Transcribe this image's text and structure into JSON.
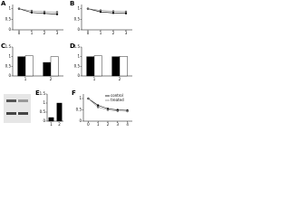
{
  "chart_data": [
    {
      "type": "line",
      "panel": "A",
      "xlim": [
        -0.5,
        3.5
      ],
      "xticks": [
        0,
        1,
        2,
        3
      ],
      "ylim": [
        0,
        1.2
      ],
      "yticks": [
        0,
        0.5,
        1
      ],
      "series": [
        {
          "color": "#000000",
          "x": [
            0,
            1,
            2,
            3
          ],
          "values": [
            1.0,
            0.82,
            0.78,
            0.74
          ]
        },
        {
          "color": "#888888",
          "x": [
            0,
            1,
            2,
            3
          ],
          "values": [
            1.0,
            0.9,
            0.86,
            0.84
          ]
        }
      ]
    },
    {
      "type": "line",
      "panel": "B",
      "xlim": [
        -0.5,
        3.5
      ],
      "xticks": [
        0,
        1,
        2,
        3
      ],
      "ylim": [
        0,
        1.2
      ],
      "yticks": [
        0,
        0.5,
        1
      ],
      "series": [
        {
          "color": "#000000",
          "x": [
            0,
            1,
            2,
            3
          ],
          "values": [
            1.0,
            0.85,
            0.8,
            0.78
          ]
        },
        {
          "color": "#888888",
          "x": [
            0,
            1,
            2,
            3
          ],
          "values": [
            1.0,
            0.92,
            0.88,
            0.86
          ]
        }
      ]
    },
    {
      "type": "bar",
      "panel": "C",
      "categories": [
        "1",
        "2"
      ],
      "ylim": [
        0,
        1.5
      ],
      "yticks": [
        0,
        0.5,
        1,
        1.5
      ],
      "series": [
        {
          "color": "#000000",
          "values": [
            1.0,
            0.7
          ]
        },
        {
          "color": "#ffffff",
          "values": [
            1.05,
            1.0
          ]
        }
      ]
    },
    {
      "type": "bar",
      "panel": "D",
      "categories": [
        "1",
        "2"
      ],
      "ylim": [
        0,
        1.5
      ],
      "yticks": [
        0,
        0.5,
        1,
        1.5
      ],
      "series": [
        {
          "color": "#000000",
          "values": [
            1.0,
            1.0
          ]
        },
        {
          "color": "#ffffff",
          "values": [
            1.05,
            1.02
          ]
        }
      ]
    },
    {
      "type": "bar",
      "panel": "E",
      "categories": [
        "1",
        "2"
      ],
      "ylim": [
        0,
        1.5
      ],
      "yticks": [
        0,
        0.5,
        1,
        1.5
      ],
      "series": [
        {
          "color": "#000000",
          "values": [
            0.2,
            1.0
          ]
        }
      ]
    },
    {
      "type": "line",
      "panel": "F",
      "xlim": [
        -0.5,
        4.5
      ],
      "xticks": [
        0,
        1,
        2,
        3,
        4
      ],
      "ylim": [
        0,
        1.2
      ],
      "yticks": [
        0,
        0.5,
        1
      ],
      "series": [
        {
          "name": "control",
          "color": "#000000",
          "x": [
            0,
            1,
            2,
            3,
            4
          ],
          "values": [
            1.0,
            0.7,
            0.55,
            0.5,
            0.48
          ]
        },
        {
          "name": "treated",
          "color": "#888888",
          "x": [
            0,
            1,
            2,
            3,
            4
          ],
          "values": [
            1.0,
            0.62,
            0.5,
            0.45,
            0.44
          ]
        }
      ]
    }
  ]
}
